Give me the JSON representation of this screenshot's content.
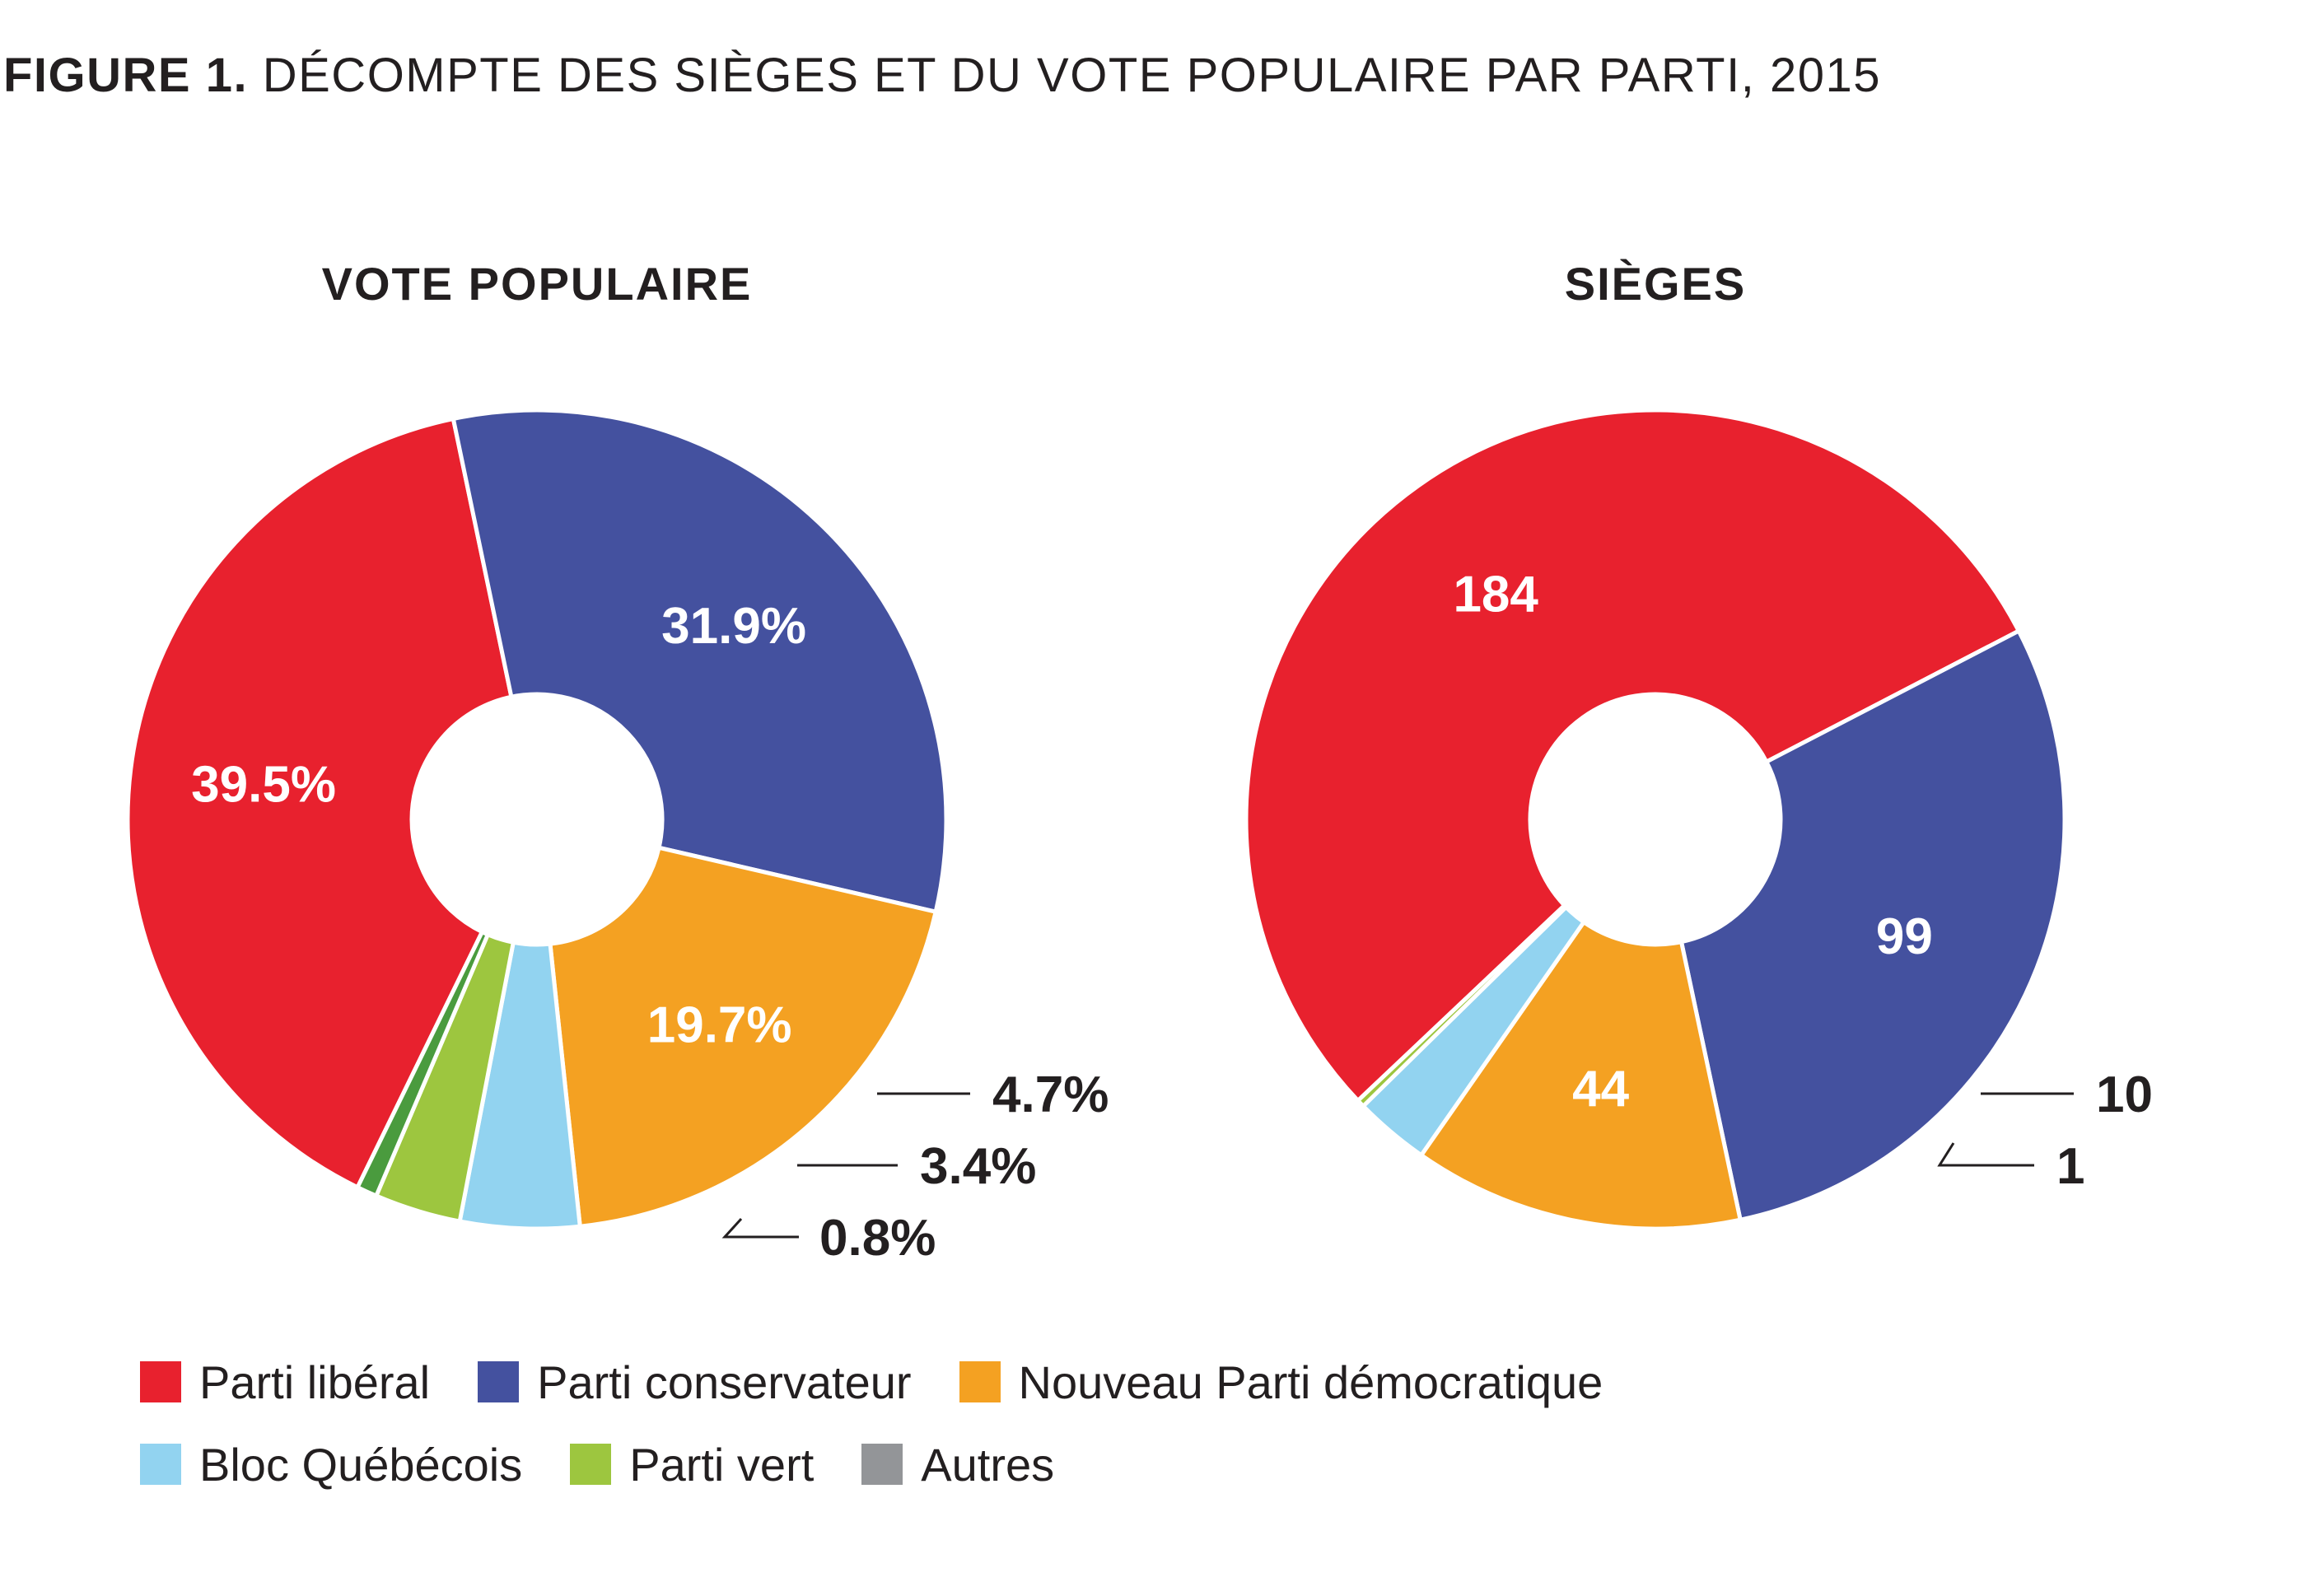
{
  "figure": {
    "title_lead": "FIGURE 1.",
    "title_rest": "DÉCOMPTE DES SIÈGES ET DU VOTE POPULAIRE PAR PARTI, 2015"
  },
  "parties": [
    {
      "key": "lib",
      "name": "Parti libéral",
      "color": "#e8212e"
    },
    {
      "key": "cons",
      "name": "Parti conservateur",
      "color": "#44519f"
    },
    {
      "key": "ndp",
      "name": "Nouveau Parti démocratique",
      "color": "#f4a122"
    },
    {
      "key": "bloc",
      "name": "Bloc Québécois",
      "color": "#92d3f0"
    },
    {
      "key": "green",
      "name": "Parti vert",
      "color": "#9dc63f"
    },
    {
      "key": "other",
      "name": "Autres",
      "color": "#939598"
    }
  ],
  "chart_data": [
    {
      "type": "pie",
      "title": "VOTE POPULAIRE",
      "categories": [
        "Parti libéral",
        "Parti conservateur",
        "Nouveau Parti démocratique",
        "Bloc Québécois",
        "Parti vert",
        "Autres"
      ],
      "values": [
        39.5,
        31.9,
        19.7,
        4.7,
        3.4,
        0.8
      ],
      "labels": [
        "39.5%",
        "31.9%",
        "19.7%",
        "4.7%",
        "3.4%",
        "0.8%"
      ],
      "colors": [
        "#e8212e",
        "#44519f",
        "#f4a122",
        "#92d3f0",
        "#9dc63f",
        "#4a9b3e"
      ]
    },
    {
      "type": "pie",
      "title": "SIÈGES",
      "categories": [
        "Parti libéral",
        "Parti conservateur",
        "Nouveau Parti démocratique",
        "Bloc Québécois",
        "Parti vert",
        "Autres"
      ],
      "values": [
        184,
        99,
        44,
        10,
        1,
        0
      ],
      "labels": [
        "184",
        "99",
        "44",
        "10",
        "1",
        ""
      ],
      "colors": [
        "#e8212e",
        "#44519f",
        "#f4a122",
        "#92d3f0",
        "#9dc63f",
        "#939598"
      ]
    }
  ]
}
